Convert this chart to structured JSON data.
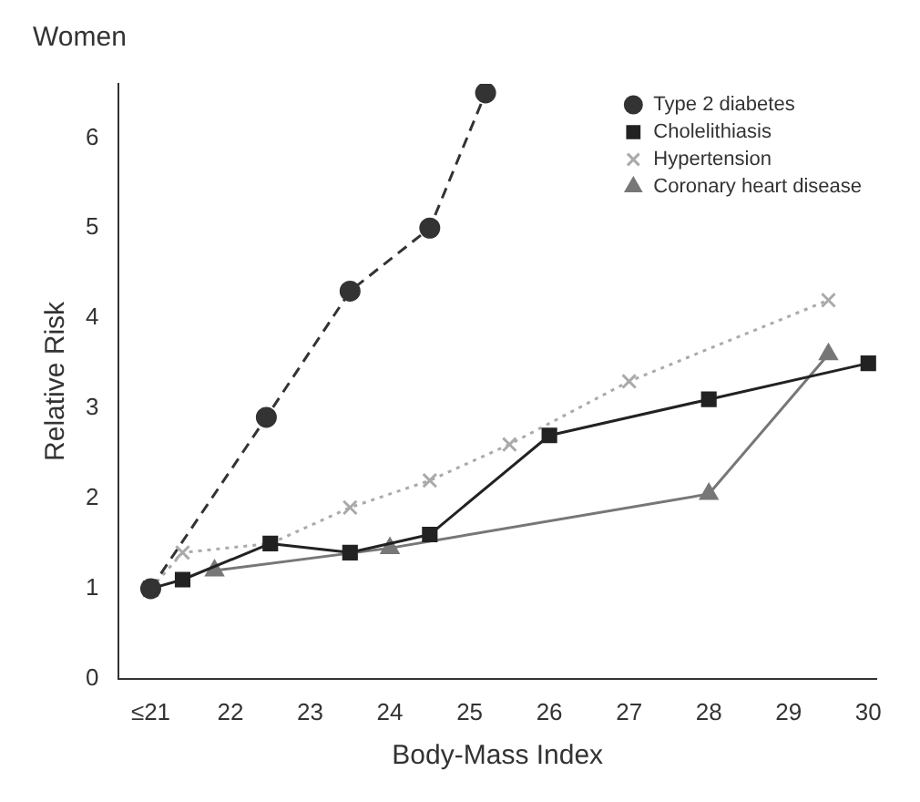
{
  "chart_data": {
    "type": "line",
    "title": "Women",
    "xlabel": "Body-Mass Index",
    "ylabel": "Relative Risk",
    "xlim": [
      20.6,
      30.1
    ],
    "xticks": [
      {
        "value": 21,
        "label": "≤21"
      },
      22,
      23,
      24,
      25,
      26,
      27,
      28,
      29,
      30
    ],
    "ylim": [
      0,
      6.6
    ],
    "yticks": [
      0,
      1,
      2,
      3,
      4,
      5,
      6
    ],
    "grid": false,
    "legend": "top right",
    "series": [
      {
        "name": "Type 2 diabetes",
        "color": "#333333",
        "marker": "circle",
        "line_style": "dashed",
        "x": [
          21,
          22.45,
          23.5,
          24.5,
          25.2
        ],
        "values": [
          1,
          2.9,
          4.3,
          5.0,
          6.5
        ]
      },
      {
        "name": "Cholelithiasis",
        "color": "#222222",
        "marker": "square",
        "line_style": "solid",
        "x": [
          21,
          21.4,
          22.5,
          23.5,
          24.5,
          26,
          28,
          30
        ],
        "values": [
          1,
          1.1,
          1.5,
          1.4,
          1.6,
          2.7,
          3.1,
          3.5
        ]
      },
      {
        "name": "Hypertension",
        "color": "#aaaaaa",
        "marker": "cross",
        "line_style": "dotted",
        "x": [
          21,
          21.4,
          22.5,
          23.5,
          24.5,
          25.5,
          27,
          29.5
        ],
        "values": [
          1,
          1.4,
          1.5,
          1.9,
          2.2,
          2.6,
          3.3,
          4.2
        ]
      },
      {
        "name": "Coronary heart disease",
        "color": "#777777",
        "marker": "triangle",
        "line_style": "solid",
        "x": [
          21.8,
          24,
          28,
          29.5
        ],
        "values": [
          1.2,
          1.45,
          2.05,
          3.6
        ]
      }
    ]
  }
}
